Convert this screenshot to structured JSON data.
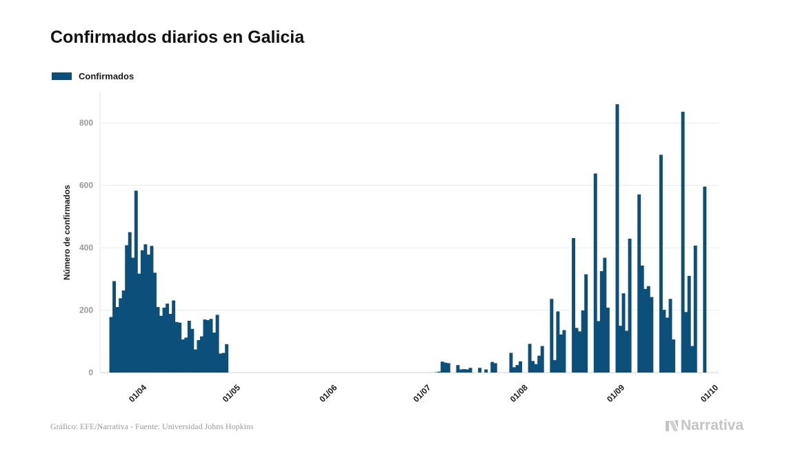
{
  "chart_data": {
    "type": "bar",
    "title": "Confirmados diarios en Galicia",
    "xlabel": "",
    "ylabel": "Número de confirmados",
    "ylim": [
      0,
      900
    ],
    "yticks": [
      0,
      200,
      400,
      600,
      800
    ],
    "xticks": [
      {
        "date": "2020-04-01",
        "label": "01/04"
      },
      {
        "date": "2020-05-01",
        "label": "01/05"
      },
      {
        "date": "2020-06-01",
        "label": "01/06"
      },
      {
        "date": "2020-07-01",
        "label": "01/07"
      },
      {
        "date": "2020-08-01",
        "label": "01/08"
      },
      {
        "date": "2020-09-01",
        "label": "01/09"
      },
      {
        "date": "2020-10-01",
        "label": "01/10"
      }
    ],
    "x_start": "2020-03-20",
    "x_end": "2020-10-04",
    "color": "#0b4f7a",
    "grid": true,
    "legend_position": "top-left",
    "series": [
      {
        "name": "Confirmados",
        "start_date": "2020-03-23",
        "values": [
          178,
          293,
          210,
          238,
          263,
          408,
          450,
          368,
          583,
          317,
          392,
          411,
          378,
          406,
          320,
          210,
          182,
          208,
          221,
          188,
          231,
          162,
          160,
          106,
          112,
          166,
          140,
          74,
          104,
          116,
          170,
          168,
          172,
          128,
          185,
          61,
          63,
          91,
          0,
          0,
          0,
          0,
          0,
          0,
          0,
          0,
          0,
          0,
          0,
          0,
          0,
          0,
          0,
          0,
          0,
          0,
          0,
          0,
          0,
          0,
          0,
          0,
          0,
          0,
          0,
          0,
          0,
          0,
          0,
          0,
          0,
          0,
          0,
          0,
          0,
          0,
          0,
          0,
          0,
          0,
          0,
          0,
          0,
          0,
          0,
          0,
          0,
          0,
          0,
          0,
          0,
          0,
          0,
          0,
          0,
          0,
          0,
          0,
          0,
          0,
          0,
          0,
          0,
          0,
          1,
          3,
          35,
          32,
          30,
          0,
          0,
          24,
          10,
          11,
          10,
          15,
          0,
          0,
          15,
          0,
          10,
          0,
          34,
          30,
          0,
          0,
          0,
          0,
          63,
          17,
          24,
          36,
          0,
          0,
          92,
          37,
          27,
          54,
          85,
          0,
          0,
          236,
          40,
          196,
          122,
          136,
          0,
          0,
          431,
          143,
          132,
          199,
          315,
          0,
          0,
          638,
          165,
          325,
          368,
          208,
          0,
          0,
          860,
          150,
          254,
          134,
          429,
          0,
          0,
          571,
          343,
          268,
          277,
          242,
          0,
          0,
          698,
          201,
          176,
          236,
          106,
          0,
          0,
          836,
          194,
          310,
          85,
          407,
          0,
          0,
          596
        ]
      }
    ]
  },
  "legend": {
    "label": "Confirmados",
    "color": "#0b4f7a"
  },
  "footer": {
    "source": "Gráfico: EFE/Narrativa - Fuente: Universidad Johns Hopkins",
    "brand": "Narrativa"
  }
}
